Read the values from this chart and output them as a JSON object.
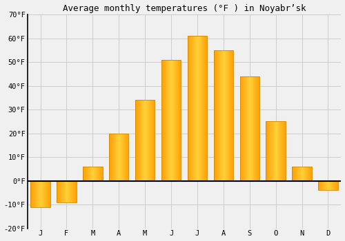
{
  "title": "Average monthly temperatures (°F ) in Noyabr’sk",
  "months": [
    "J",
    "F",
    "M",
    "A",
    "M",
    "J",
    "J",
    "A",
    "S",
    "O",
    "N",
    "D"
  ],
  "values": [
    -11,
    -9,
    6,
    20,
    34,
    51,
    61,
    55,
    44,
    25,
    6,
    -4
  ],
  "bar_color": "#FFC840",
  "bar_edge_color": "#CC8800",
  "ylim": [
    -20,
    70
  ],
  "yticks": [
    -20,
    -10,
    0,
    10,
    20,
    30,
    40,
    50,
    60,
    70
  ],
  "ytick_labels": [
    "-20°F",
    "-10°F",
    "0°F",
    "10°F",
    "20°F",
    "30°F",
    "40°F",
    "50°F",
    "60°F",
    "70°F"
  ],
  "background_color": "#F0F0F0",
  "grid_color": "#CCCCCC",
  "title_fontsize": 9,
  "tick_fontsize": 7.5,
  "bar_width": 0.75
}
